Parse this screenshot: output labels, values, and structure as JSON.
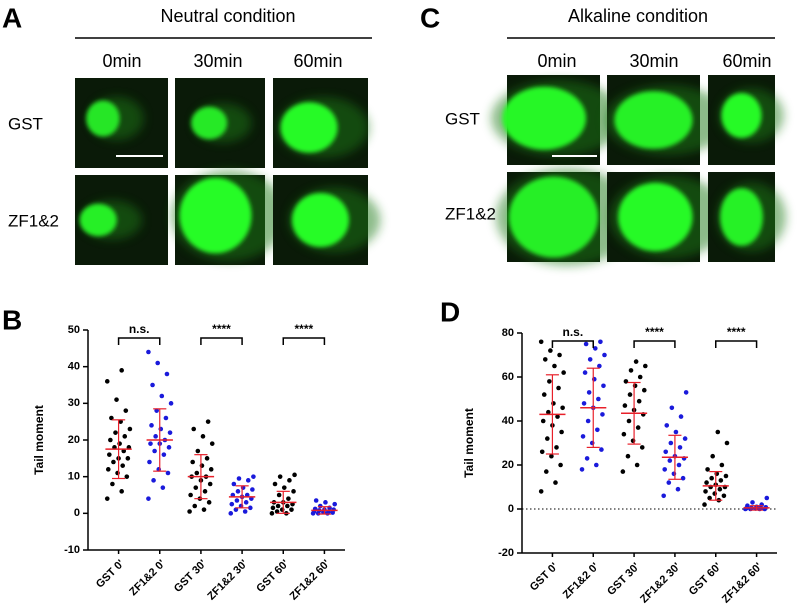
{
  "figure_panels": [
    {
      "letter": "A",
      "title": "Neutral condition",
      "columns": [
        "0min",
        "30min",
        "60min"
      ],
      "rows": [
        "GST",
        "ZF1&2"
      ]
    },
    {
      "letter": "C",
      "title": "Alkaline condition",
      "columns": [
        "0min",
        "30min",
        "60min"
      ],
      "rows": [
        "GST",
        "ZF1&2"
      ]
    }
  ],
  "chart_data": [
    {
      "type": "dot",
      "letter": "B",
      "ylabel": "Tail moment",
      "categories": [
        "GST 0'",
        "ZF1&2 0'",
        "GST 30'",
        "ZF1&2 30'",
        "GST 60'",
        "ZF1&2 60'"
      ],
      "ylim": [
        -10,
        50
      ],
      "yticks": [
        -10,
        0,
        10,
        20,
        30,
        40,
        50
      ],
      "annotations": [
        "n.s.",
        "****",
        "****"
      ],
      "summary_color": "#e8202a",
      "groups": [
        {
          "color": "#000000",
          "mean": 17.5,
          "sd": 8,
          "values": [
            4,
            6,
            8,
            10,
            11,
            12,
            13,
            14,
            15,
            15,
            16,
            17,
            18,
            18,
            19,
            20,
            21,
            22,
            23,
            25,
            26,
            28,
            31,
            36,
            39
          ]
        },
        {
          "color": "#1a1adb",
          "mean": 20,
          "sd": 8.5,
          "values": [
            4,
            7,
            9,
            11,
            12,
            14,
            16,
            17,
            18,
            19,
            19,
            20,
            21,
            22,
            23,
            24,
            26,
            28,
            30,
            32,
            35,
            38,
            41,
            44
          ]
        },
        {
          "color": "#000000",
          "mean": 10,
          "sd": 6,
          "values": [
            0.5,
            1,
            2,
            3,
            4,
            5,
            6,
            7,
            8,
            9,
            10,
            10,
            11,
            12,
            13,
            14,
            15,
            17,
            19,
            21,
            23,
            25
          ]
        },
        {
          "color": "#1a1adb",
          "mean": 4.5,
          "sd": 3,
          "values": [
            0,
            0.5,
            1,
            1.5,
            2,
            2.5,
            3,
            3.5,
            4,
            4.5,
            5,
            5,
            6,
            6.5,
            7,
            8,
            9,
            9.5,
            10
          ]
        },
        {
          "color": "#000000",
          "mean": 3,
          "sd": 3,
          "values": [
            0,
            0,
            0.5,
            1,
            1,
            1.5,
            2,
            2,
            2.5,
            3,
            3,
            4,
            5,
            6,
            7,
            8,
            9,
            10,
            10.5
          ]
        },
        {
          "color": "#1a1adb",
          "mean": 0.8,
          "sd": 1,
          "values": [
            0,
            0,
            0,
            0.2,
            0.3,
            0.5,
            0.5,
            0.8,
            1,
            1,
            1.2,
            1.5,
            2,
            2.5,
            3,
            3.5
          ]
        }
      ]
    },
    {
      "type": "dot",
      "letter": "D",
      "ylabel": "Tail moment",
      "categories": [
        "GST 0'",
        "ZF1&2 0'",
        "GST 30'",
        "ZF1&2 30'",
        "GST 60'",
        "ZF1&2 60'"
      ],
      "ylim": [
        -20,
        80
      ],
      "yticks": [
        -20,
        0,
        20,
        40,
        60,
        80
      ],
      "reference_line": 0,
      "annotations": [
        "n.s.",
        "****",
        "****"
      ],
      "summary_color": "#e8202a",
      "groups": [
        {
          "color": "#000000",
          "mean": 43,
          "sd": 18,
          "values": [
            8,
            12,
            17,
            20,
            24,
            26,
            28,
            32,
            35,
            38,
            40,
            42,
            44,
            46,
            48,
            52,
            55,
            58,
            62,
            65,
            68,
            70,
            72,
            76
          ]
        },
        {
          "color": "#1a1adb",
          "mean": 46,
          "sd": 18,
          "values": [
            18,
            20,
            23,
            27,
            30,
            33,
            36,
            40,
            43,
            46,
            48,
            50,
            53,
            56,
            59,
            62,
            65,
            68,
            70,
            73,
            75,
            76
          ]
        },
        {
          "color": "#000000",
          "mean": 43.5,
          "sd": 14,
          "values": [
            17,
            20,
            24,
            28,
            31,
            34,
            37,
            40,
            43,
            45,
            47,
            49,
            52,
            54,
            56,
            58,
            60,
            63,
            65,
            67
          ]
        },
        {
          "color": "#1a1adb",
          "mean": 23.5,
          "sd": 10,
          "values": [
            6,
            9,
            12,
            14,
            16,
            18,
            20,
            22,
            23,
            24,
            26,
            28,
            30,
            32,
            35,
            38,
            42,
            46,
            53
          ]
        },
        {
          "color": "#000000",
          "mean": 10.5,
          "sd": 6.5,
          "values": [
            2,
            4,
            5,
            6,
            7,
            8,
            9,
            10,
            10,
            11,
            12,
            13,
            14,
            15,
            16,
            18,
            20,
            24,
            30,
            35
          ]
        },
        {
          "color": "#1a1adb",
          "mean": 0.5,
          "sd": 1,
          "values": [
            0,
            0,
            0,
            0,
            0.2,
            0.3,
            0.5,
            0.5,
            0.8,
            1,
            1.5,
            2,
            3,
            5
          ]
        }
      ]
    }
  ]
}
